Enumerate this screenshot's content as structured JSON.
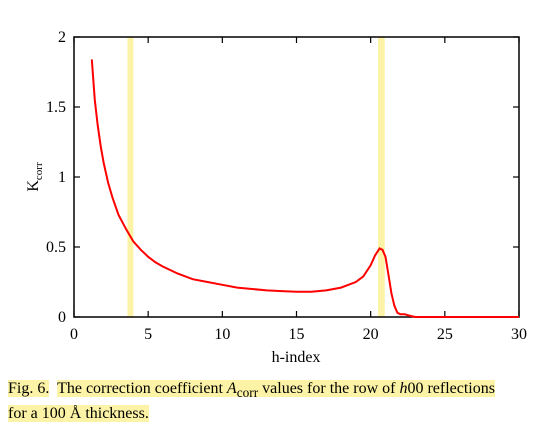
{
  "chart_data": {
    "type": "line",
    "xlabel": "h-index",
    "ylabel_main": "K",
    "ylabel_sub": "corr",
    "xlim": [
      0,
      30
    ],
    "ylim": [
      0,
      2
    ],
    "xticks": [
      "0",
      "5",
      "10",
      "15",
      "20",
      "25",
      "30"
    ],
    "yticks": [
      "0",
      "0.5",
      "1",
      "1.5",
      "2"
    ],
    "grid": false,
    "legend": "none",
    "series": [
      {
        "color": "#ff0000",
        "x": [
          1.2,
          1.4,
          1.6,
          1.8,
          2.0,
          2.3,
          2.6,
          3.0,
          3.5,
          4.0,
          4.5,
          5.0,
          5.5,
          6.0,
          7.0,
          8.0,
          9.0,
          10.0,
          11.0,
          12.0,
          13.0,
          14.0,
          15.0,
          16.0,
          17.0,
          18.0,
          19.0,
          19.5,
          20.0,
          20.3,
          20.6,
          20.8,
          21.0,
          21.2,
          21.4,
          21.6,
          21.8,
          22.0,
          22.3,
          22.6,
          23.0,
          24.0,
          25.0,
          26.0,
          27.0,
          28.0,
          29.0,
          30.0
        ],
        "y": [
          1.84,
          1.55,
          1.37,
          1.22,
          1.1,
          0.96,
          0.85,
          0.73,
          0.63,
          0.54,
          0.48,
          0.43,
          0.39,
          0.36,
          0.31,
          0.27,
          0.25,
          0.23,
          0.21,
          0.2,
          0.19,
          0.185,
          0.18,
          0.18,
          0.19,
          0.21,
          0.25,
          0.29,
          0.37,
          0.44,
          0.49,
          0.48,
          0.43,
          0.3,
          0.17,
          0.08,
          0.03,
          0.02,
          0.02,
          0.01,
          0.0,
          0.0,
          0.0,
          0.0,
          0.0,
          0.0,
          0.0,
          0.0
        ]
      }
    ],
    "highlight_bands": [
      {
        "x": [
          3.6,
          4.0
        ],
        "color": "#fdf3a6"
      },
      {
        "x": [
          20.5,
          20.95
        ],
        "color": "#fdf3a6"
      }
    ]
  },
  "caption": {
    "fig_label": "Fig. 6.",
    "part1": "The correction coefficient ",
    "symbol": "A",
    "symbol_sub": "corr",
    "part2": " values for the row of ",
    "h_italic": "h",
    "part3": "00 reflections",
    "line2": "for a 100 Å  thickness."
  }
}
